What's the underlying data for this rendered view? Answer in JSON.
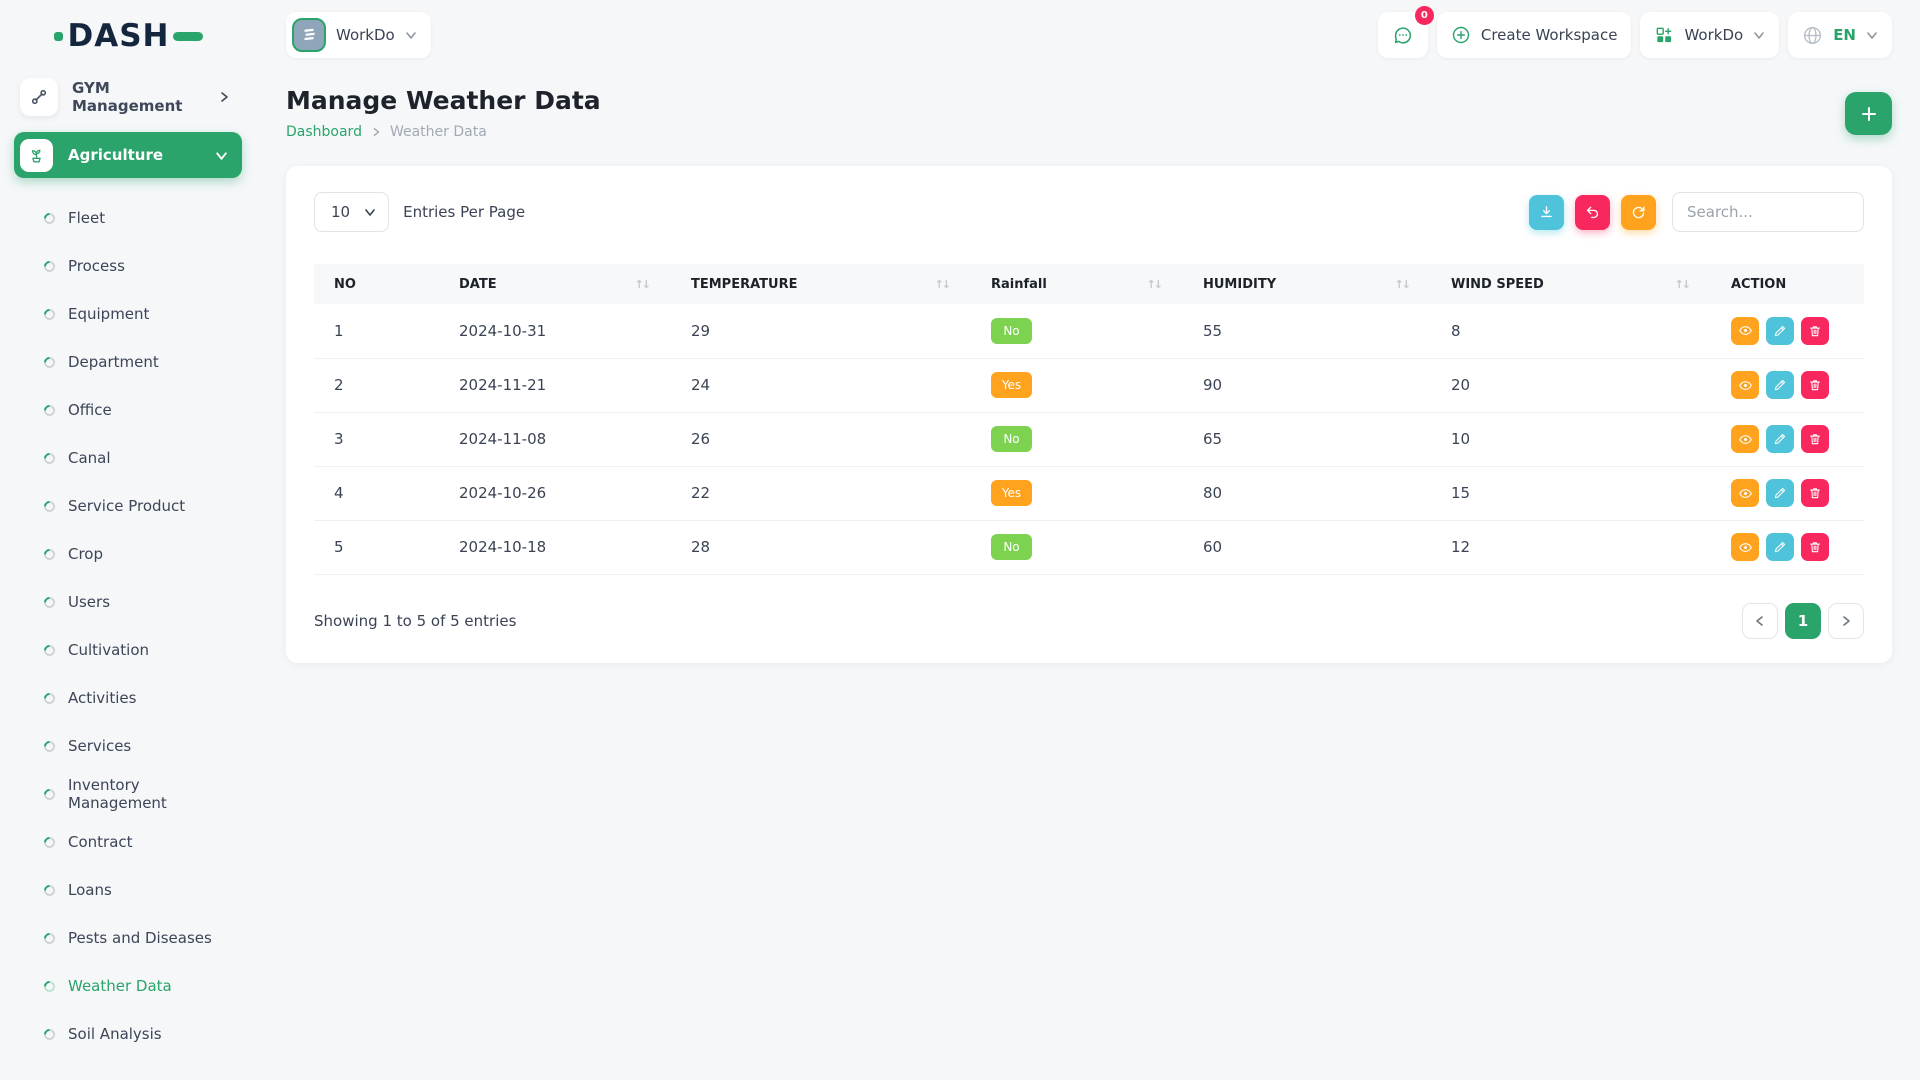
{
  "brand": {
    "name": "DASH"
  },
  "workspace_switcher": {
    "label": "WorkDo"
  },
  "topbar": {
    "messages_badge": "0",
    "create_workspace_label": "Create Workspace",
    "workspace_label": "WorkDo",
    "language": "EN"
  },
  "sidebar": {
    "gym_label": "GYM Management",
    "active_module_label": "Agriculture",
    "items": [
      {
        "label": "Fleet",
        "active": false
      },
      {
        "label": "Process",
        "active": false
      },
      {
        "label": "Equipment",
        "active": false
      },
      {
        "label": "Department",
        "active": false
      },
      {
        "label": "Office",
        "active": false
      },
      {
        "label": "Canal",
        "active": false
      },
      {
        "label": "Service Product",
        "active": false
      },
      {
        "label": "Crop",
        "active": false
      },
      {
        "label": "Users",
        "active": false
      },
      {
        "label": "Cultivation",
        "active": false
      },
      {
        "label": "Activities",
        "active": false
      },
      {
        "label": "Services",
        "active": false
      },
      {
        "label": "Inventory Management",
        "active": false
      },
      {
        "label": "Contract",
        "active": false
      },
      {
        "label": "Loans",
        "active": false
      },
      {
        "label": "Pests and Diseases",
        "active": false
      },
      {
        "label": "Weather Data",
        "active": true
      },
      {
        "label": "Soil Analysis",
        "active": false
      }
    ]
  },
  "page": {
    "title": "Manage Weather Data",
    "breadcrumb": {
      "root": "Dashboard",
      "current": "Weather Data"
    }
  },
  "toolbar": {
    "entries_select_value": "10",
    "entries_label": "Entries Per Page",
    "search_placeholder": "Search...",
    "buttons": [
      {
        "name": "export",
        "icon": "download-icon",
        "color": "#4ec3da"
      },
      {
        "name": "reset",
        "icon": "undo-icon",
        "color": "#f8285f"
      },
      {
        "name": "refresh",
        "icon": "refresh-icon",
        "color": "#ffa21d"
      }
    ]
  },
  "table": {
    "badge_yes_value": "Yes",
    "columns": [
      {
        "label": "NO",
        "sortable": false
      },
      {
        "label": "DATE",
        "sortable": true
      },
      {
        "label": "TEMPERATURE",
        "sortable": true
      },
      {
        "label": "Rainfall",
        "sortable": true
      },
      {
        "label": "HUMIDITY",
        "sortable": true
      },
      {
        "label": "WIND SPEED",
        "sortable": true
      },
      {
        "label": "ACTION",
        "sortable": false
      }
    ],
    "rows": [
      {
        "no": "1",
        "date": "2024-10-31",
        "temperature": "29",
        "rainfall": "No",
        "humidity": "55",
        "wind_speed": "8"
      },
      {
        "no": "2",
        "date": "2024-11-21",
        "temperature": "24",
        "rainfall": "Yes",
        "humidity": "90",
        "wind_speed": "20"
      },
      {
        "no": "3",
        "date": "2024-11-08",
        "temperature": "26",
        "rainfall": "No",
        "humidity": "65",
        "wind_speed": "10"
      },
      {
        "no": "4",
        "date": "2024-10-26",
        "temperature": "22",
        "rainfall": "Yes",
        "humidity": "80",
        "wind_speed": "15"
      },
      {
        "no": "5",
        "date": "2024-10-18",
        "temperature": "28",
        "rainfall": "No",
        "humidity": "60",
        "wind_speed": "12"
      }
    ],
    "actions": [
      "view",
      "edit",
      "delete"
    ]
  },
  "footer": {
    "showing_text": "Showing 1 to 5 of 5 entries",
    "current_page": "1"
  },
  "colors": {
    "primary_green": "#2aa46b",
    "badge_green": "#7dd34f",
    "orange": "#ffa21d",
    "teal": "#4ec3da",
    "pink": "#f8285f",
    "logo_navy": "#14263e"
  }
}
